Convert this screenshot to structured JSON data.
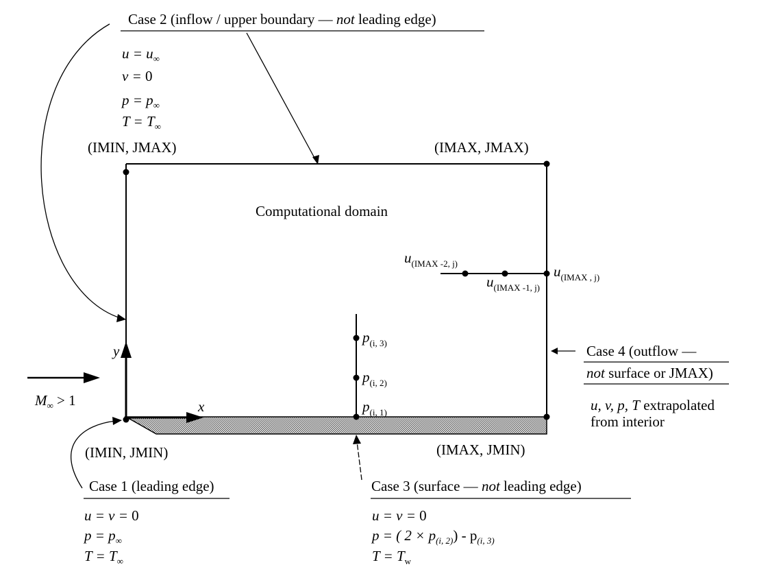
{
  "domain_label": "Computational domain",
  "corners": {
    "imin_jmax": "(IMIN, JMAX)",
    "imax_jmax": "(IMAX, JMAX)",
    "imin_jmin": "(IMIN, JMIN)",
    "imax_jmin": "(IMAX, JMIN)"
  },
  "freestream": {
    "label": "M",
    "sub": "∞",
    "condition": " > 1"
  },
  "axes": {
    "x": "x",
    "y": "y"
  },
  "case1": {
    "title": "Case 1 (leading edge)",
    "eq1_lhs": "u = v = ",
    "eq1_rhs": "0",
    "eq2_lhs": "p = p",
    "eq2_sub": "∞",
    "eq3_lhs": "T = T",
    "eq3_sub": "∞"
  },
  "case2": {
    "title_a": "Case 2 (inflow / upper boundary — ",
    "title_b": "not",
    "title_c": " leading edge)",
    "eq1_lhs": "u = u",
    "eq1_sub": "∞",
    "eq2_lhs": "v = ",
    "eq2_rhs": "0",
    "eq3_lhs": "p = p",
    "eq3_sub": "∞",
    "eq4_lhs": "T = T",
    "eq4_sub": "∞"
  },
  "case3": {
    "title_a": "Case 3 (surface — ",
    "title_b": "not",
    "title_c": " leading edge)",
    "eq1_lhs": "u = v = ",
    "eq1_rhs": "0",
    "eq2_a": "p = ( 2 × p",
    "eq2_sub1": "(i, 2)",
    "eq2_b": ") - p",
    "eq2_sub2": "(i, 3)",
    "eq3_lhs": "T = T",
    "eq3_sub": "w"
  },
  "case4": {
    "title1": "Case 4 (outflow —",
    "title2_a": "not",
    "title2_b": " surface or JMAX)",
    "body1_a": "u, v, p, T",
    "body1_b": " extrapolated",
    "body2": "from interior"
  },
  "pressure_points": [
    {
      "main": "p",
      "sub": "(i, 3)"
    },
    {
      "main": "p",
      "sub": "(i, 2)"
    },
    {
      "main": "p",
      "sub": "(i, 1)"
    }
  ],
  "velocity_points": [
    {
      "main": "u",
      "sub": "(IMAX -2, j)"
    },
    {
      "main": "u",
      "sub": "(IMAX -1, j)"
    },
    {
      "main": "u",
      "sub": "(IMAX , j)"
    }
  ]
}
